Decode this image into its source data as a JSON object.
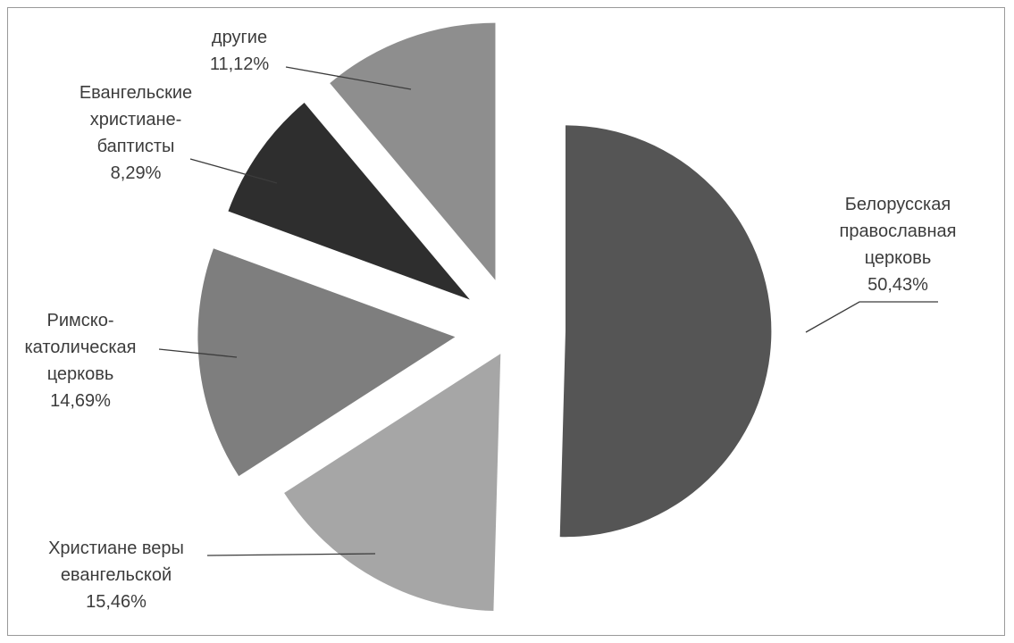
{
  "chart_data": {
    "type": "pie",
    "variant": "exploded",
    "title": "",
    "start_angle_deg": 0,
    "direction": "clockwise",
    "slices": [
      {
        "name": "Белорусская православная церковь",
        "lines": [
          "Белорусская",
          "православная",
          "церковь"
        ],
        "value": 50.43,
        "value_label": "50,43%",
        "color": "#555555"
      },
      {
        "name": "Христиане веры евангельской",
        "lines": [
          "Христиане веры",
          "евангельской"
        ],
        "value": 15.46,
        "value_label": "15,46%",
        "color": "#a6a6a6"
      },
      {
        "name": "Римско-католическая церковь",
        "lines": [
          "Римско-",
          "католическая",
          "церковь"
        ],
        "value": 14.69,
        "value_label": "14,69%",
        "color": "#7e7e7e"
      },
      {
        "name": "Евангельские христиане-баптисты",
        "lines": [
          "Евангельские",
          "христиане-",
          "баптисты"
        ],
        "value": 8.29,
        "value_label": "8,29%",
        "color": "#2e2e2e"
      },
      {
        "name": "другие",
        "lines": [
          "другие"
        ],
        "value": 11.12,
        "value_label": "11,12%",
        "color": "#8e8e8e"
      }
    ]
  }
}
